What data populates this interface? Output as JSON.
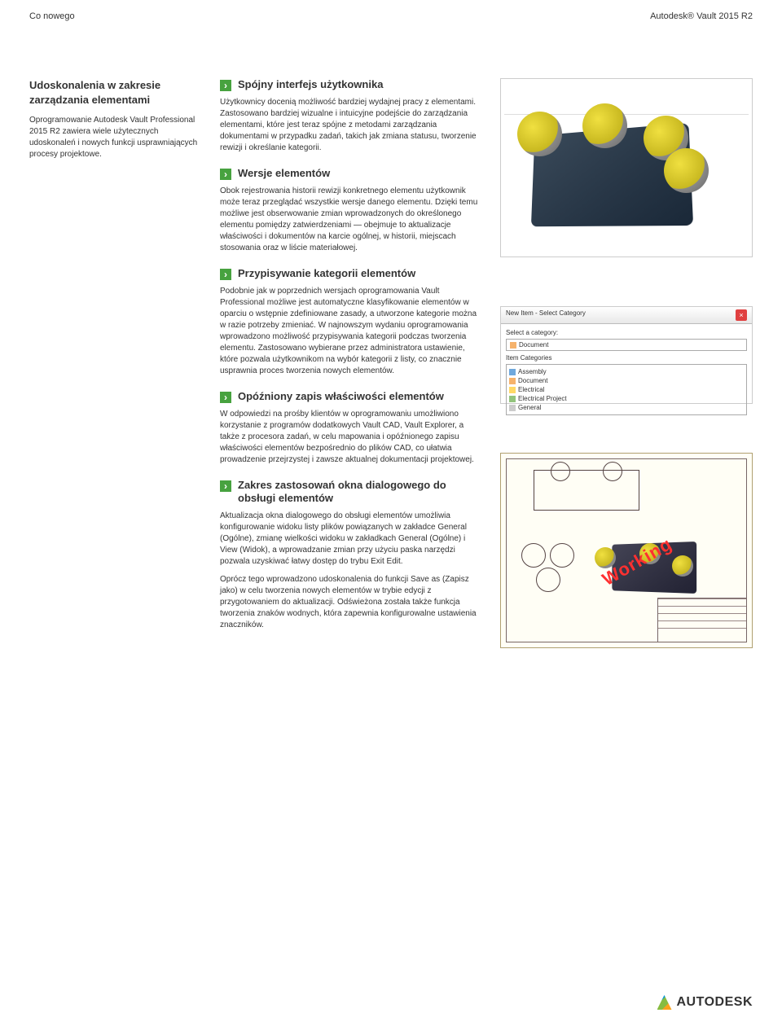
{
  "header": {
    "left": "Co nowego",
    "right": "Autodesk® Vault 2015 R2"
  },
  "sidebar": {
    "title": "Udoskonalenia w zakresie zarządzania elementami",
    "body": "Oprogramowanie Autodesk Vault Professional 2015 R2 zawiera wiele użytecznych udoskonaleń i nowych funkcji usprawniających procesy projektowe."
  },
  "sections": [
    {
      "title": "Spójny interfejs użytkownika",
      "body": "Użytkownicy docenią możliwość bardziej wydajnej pracy z elementami. Zastosowano bardziej wizualne i intuicyjne podejście do zarządzania elementami, które jest teraz spójne z metodami zarządzania dokumentami w przypadku zadań, takich jak zmiana statusu, tworzenie rewizji i określanie kategorii."
    },
    {
      "title": "Wersje elementów",
      "body": "Obok rejestrowania historii rewizji konkretnego elementu użytkownik może teraz przeglądać wszystkie wersje danego elementu. Dzięki temu możliwe jest obserwowanie zmian wprowadzonych do określonego elementu pomiędzy zatwierdzeniami — obejmuje to aktualizacje właściwości i dokumentów na karcie ogólnej, w historii, miejscach stosowania oraz w liście materiałowej."
    },
    {
      "title": "Przypisywanie kategorii elementów",
      "body": "Podobnie jak w poprzednich wersjach oprogramowania Vault Professional możliwe jest automatyczne klasyfikowanie elementów w oparciu o wstępnie zdefiniowane zasady, a utworzone kategorie można w razie potrzeby zmieniać. W najnowszym wydaniu oprogramowania wprowadzono możliwość przypisywania kategorii podczas tworzenia elementu. Zastosowano wybierane przez administratora ustawienie, które pozwala użytkownikom na wybór kategorii z listy, co znacznie usprawnia proces tworzenia nowych elementów."
    },
    {
      "title": "Opóźniony zapis właściwości elementów",
      "body": "W odpowiedzi na prośby klientów w oprogramowaniu umożliwiono korzystanie z programów dodatkowych Vault CAD, Vault Explorer, a także z procesora zadań, w celu mapowania i opóźnionego zapisu właściwości elementów bezpośrednio do plików CAD, co ułatwia prowadzenie przejrzystej i zawsze aktualnej dokumentacji projektowej."
    },
    {
      "title": "Zakres zastosowań okna dialogowego do obsługi elementów",
      "body": "Aktualizacja okna dialogowego do obsługi elementów umożliwia konfigurowanie widoku listy plików powiązanych w zakładce General (Ogólne), zmianę wielkości widoku w zakładkach General (Ogólne) i View (Widok), a wprowadzanie zmian przy użyciu paska narzędzi pozwala uzyskiwać łatwy dostęp do trybu Exit Edit.",
      "body2": "Oprócz tego wprowadzono udoskonalenia do funkcji Save as (Zapisz jako) w celu tworzenia nowych elementów w trybie edycji z przygotowaniem do aktualizacji. Odświeżona została także funkcja tworzenia znaków wodnych, która zapewnia konfigurowalne ustawienia znaczników."
    }
  ],
  "dialog": {
    "title": "New Item - Select Category",
    "label": "Select a category:",
    "selected": "Document",
    "listLabel": "Item Categories",
    "items": [
      {
        "color": "#6fa8dc",
        "label": "Assembly"
      },
      {
        "color": "#f6b26b",
        "label": "Document"
      },
      {
        "color": "#ffd966",
        "label": "Electrical"
      },
      {
        "color": "#93c47d",
        "label": "Electrical Project"
      },
      {
        "color": "#cccccc",
        "label": "General"
      }
    ]
  },
  "watermark": "Working",
  "footer": {
    "brand": "AUTODESK"
  }
}
